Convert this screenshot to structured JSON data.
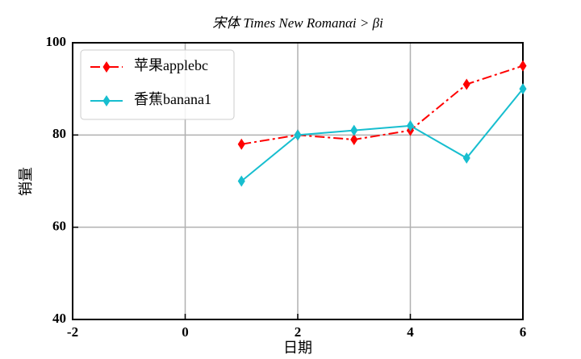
{
  "chart_data": {
    "type": "line",
    "title": "宋体 Times New Romanαi > βi",
    "x_label": "日期",
    "y_label": "销量",
    "x": [
      1,
      2,
      3,
      4,
      5,
      6
    ],
    "series": [
      {
        "name": "苹果applebc",
        "color": "#ff0000",
        "line_style": "dashdot",
        "marker": "diamond",
        "values": [
          78,
          80,
          79,
          81,
          91,
          95
        ]
      },
      {
        "name": "香蕉banana1",
        "color": "#17becf",
        "line_style": "solid",
        "marker": "diamond",
        "values": [
          70,
          80,
          81,
          82,
          75,
          90
        ]
      }
    ],
    "xlim": [
      -2,
      6
    ],
    "xticks": [
      -2,
      0,
      2,
      4,
      6
    ],
    "ylim": [
      40,
      100
    ],
    "yticks": [
      40,
      60,
      80,
      100
    ],
    "grid": true,
    "legend": "upper-left"
  }
}
